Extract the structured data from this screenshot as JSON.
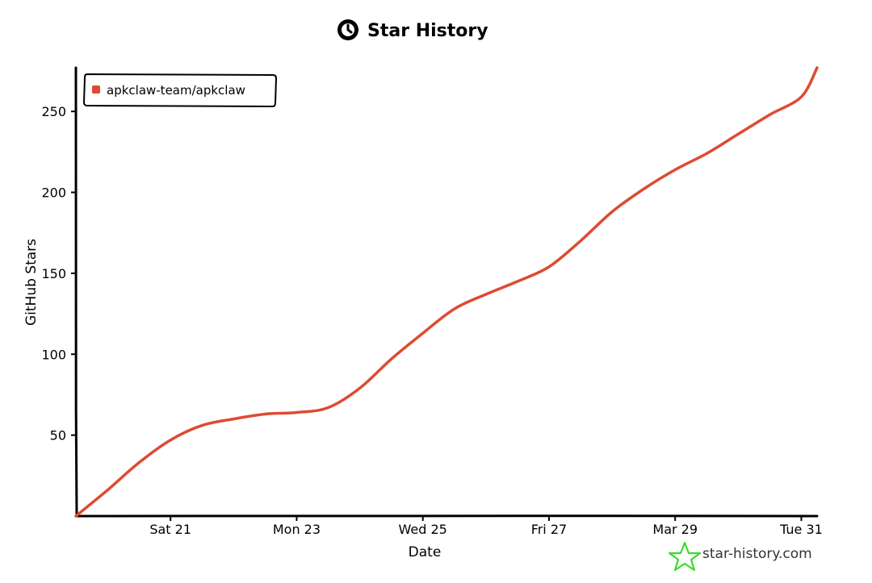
{
  "chart_data": {
    "type": "line",
    "title": "Star History",
    "xlabel": "Date",
    "ylabel": "GitHub Stars",
    "x_ticks": [
      "Sat 21",
      "Mon 23",
      "Wed 25",
      "Fri 27",
      "Mar 29",
      "Tue 31"
    ],
    "y_ticks": [
      50,
      100,
      150,
      200,
      250
    ],
    "ylim": [
      0,
      277
    ],
    "grid": false,
    "legend_position": "top-left",
    "series": [
      {
        "name": "apkclaw-team/apkclaw",
        "color": "#dd4b32",
        "x": [
          "Mar 19 12:00",
          "Mar 20 00:00",
          "Mar 20 12:00",
          "Mar 21 00:00",
          "Mar 21 12:00",
          "Mar 22 00:00",
          "Mar 22 12:00",
          "Mar 23 00:00",
          "Mar 23 12:00",
          "Mar 24 00:00",
          "Mar 24 12:00",
          "Mar 25 00:00",
          "Mar 25 12:00",
          "Mar 26 00:00",
          "Mar 26 12:00",
          "Mar 27 00:00",
          "Mar 27 12:00",
          "Mar 28 00:00",
          "Mar 28 12:00",
          "Mar 29 00:00",
          "Mar 29 12:00",
          "Mar 30 00:00",
          "Mar 30 12:00",
          "Mar 31 00:00",
          "Mar 31 06:00"
        ],
        "values": [
          0,
          16,
          33,
          47,
          56,
          60,
          63,
          64,
          67,
          79,
          97,
          113,
          128,
          137,
          145,
          154,
          170,
          188,
          202,
          214,
          224,
          236,
          248,
          259,
          277
        ]
      }
    ]
  },
  "watermark": {
    "text": "star-history.com",
    "icon": "star-icon",
    "color": "#3adb2f"
  },
  "title_icon": "clock-logo-icon"
}
